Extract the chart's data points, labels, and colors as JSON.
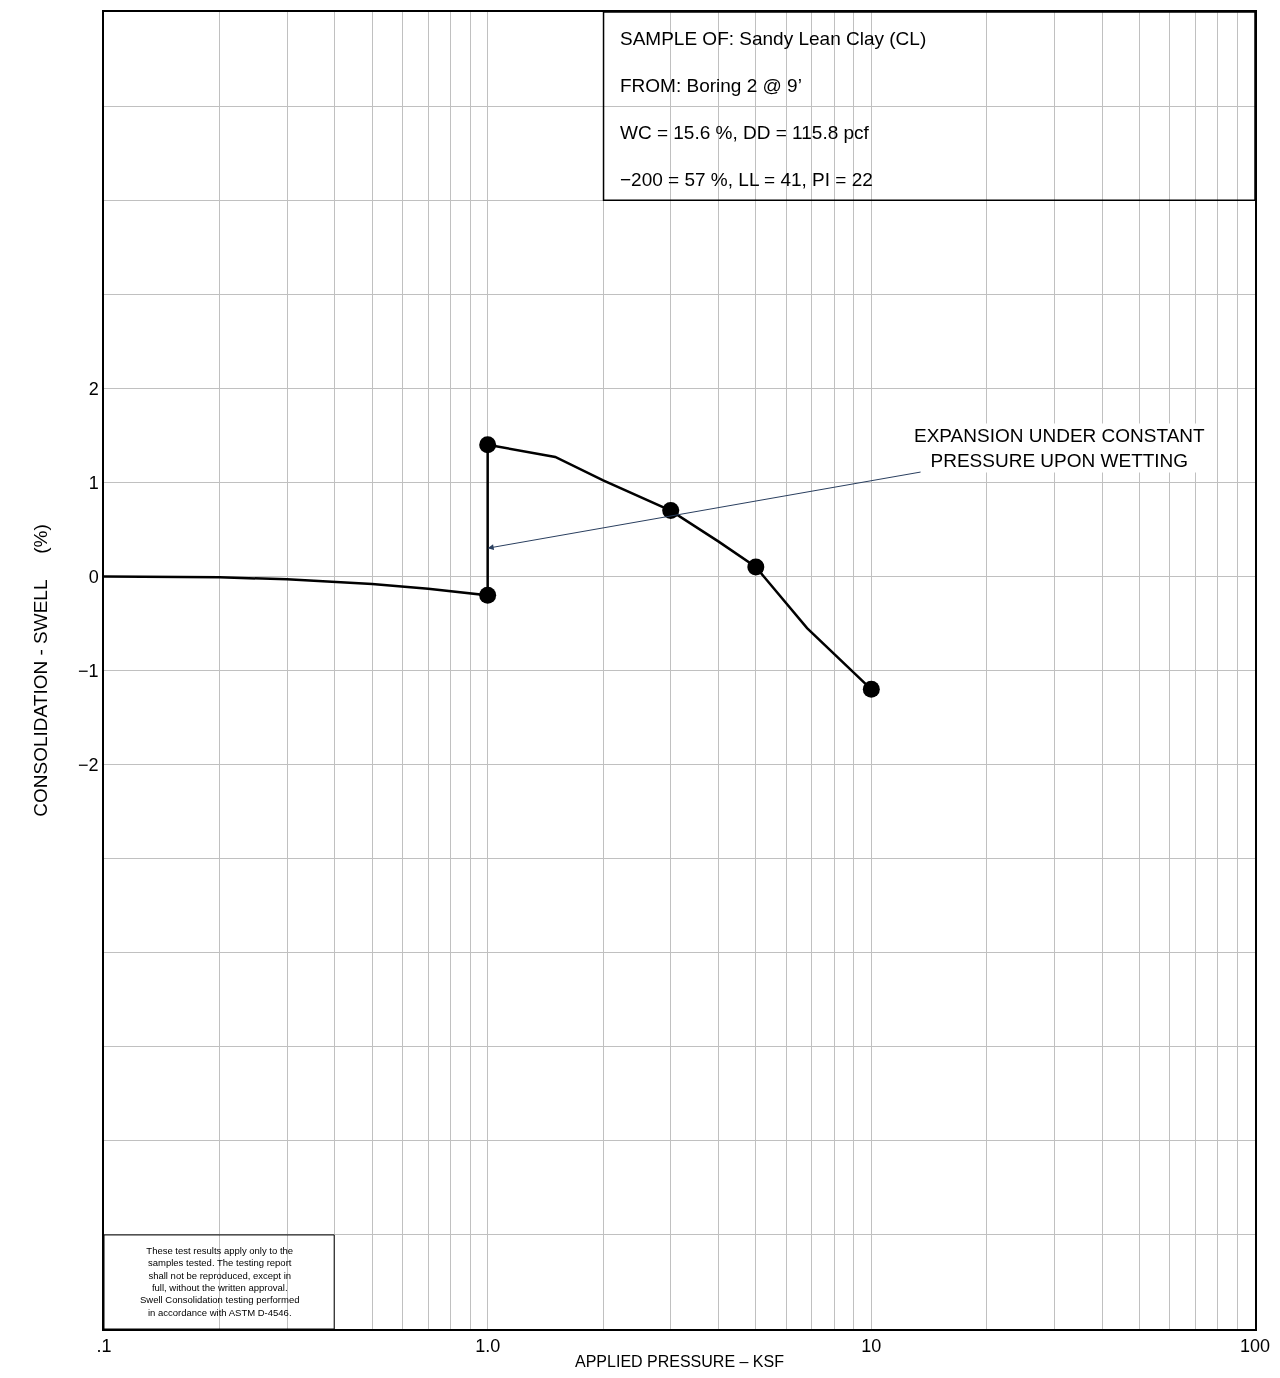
{
  "chart_data": {
    "type": "line",
    "xlabel": "APPLIED PRESSURE – KSF",
    "ylabel": "CONSOLIDATION - SWELL     (%)",
    "annotations": [
      "SAMPLE OF: Sandy Lean Clay (CL)",
      "FROM: Boring 2 @ 9’",
      "WC = 15.6 %, DD = 115.8 pcf",
      "−200 = 57 %, LL = 41, PI = 22",
      "These test results apply only to the samples tested. The testing report shall not be reproduced, except in full, without the written approval. Swell Consolidation testing performed in accordance with ASTM D-4546.",
      {
        "text": "EXPANSION UNDER CONSTANT PRESSURE UPON WETTING",
        "x": 1,
        "y": 0.3
      }
    ],
    "series": [
      {
        "color": "#000000",
        "marker": "none",
        "x": [
          0.1,
          0.2,
          0.3,
          0.5,
          0.7,
          1,
          1,
          1.5,
          2,
          3,
          4,
          5,
          6.8,
          10
        ],
        "values": [
          0,
          -0.01,
          -0.03,
          -0.08,
          -0.13,
          -0.2,
          1.4,
          1.27,
          1.02,
          0.7,
          0.37,
          0.1,
          -0.55,
          -1.2
        ]
      },
      {
        "type": "scatter",
        "color": "#000000",
        "marker": "circle",
        "x": [
          1,
          1,
          3,
          5,
          10
        ],
        "values": [
          -0.2,
          1.4,
          0.7,
          0.1,
          -1.2
        ]
      }
    ],
    "log": "x",
    "xlim": [
      0.1,
      100
    ],
    "xticks": [
      {
        "value": 0.1,
        "label": ".1"
      },
      {
        "value": 0.2,
        "label": null
      },
      {
        "value": 0.3,
        "label": null
      },
      {
        "value": 0.4,
        "label": null
      },
      {
        "value": 0.5,
        "label": null
      },
      {
        "value": 0.6,
        "label": null
      },
      {
        "value": 0.7,
        "label": null
      },
      {
        "value": 0.8,
        "label": null
      },
      {
        "value": 0.9,
        "label": null
      },
      {
        "value": 1,
        "label": "1.0"
      },
      {
        "value": 2,
        "label": null
      },
      {
        "value": 3,
        "label": null
      },
      {
        "value": 4,
        "label": null
      },
      {
        "value": 5,
        "label": null
      },
      {
        "value": 6,
        "label": null
      },
      {
        "value": 7,
        "label": null
      },
      {
        "value": 8,
        "label": null
      },
      {
        "value": 9,
        "label": null
      },
      10,
      {
        "value": 20,
        "label": null
      },
      {
        "value": 30,
        "label": null
      },
      {
        "value": 40,
        "label": null
      },
      {
        "value": 50,
        "label": null
      },
      {
        "value": 60,
        "label": null
      },
      {
        "value": 70,
        "label": null
      },
      {
        "value": 80,
        "label": null
      },
      {
        "value": 90,
        "label": null
      },
      100
    ],
    "ylim": [
      -8,
      6
    ],
    "yticks": [
      {
        "value": -8,
        "label": null
      },
      {
        "value": -7,
        "label": null
      },
      {
        "value": -6,
        "label": null
      },
      {
        "value": -5,
        "label": null
      },
      {
        "value": -4,
        "label": null
      },
      {
        "value": -3,
        "label": null
      },
      {
        "value": -2,
        "label": "−2"
      },
      {
        "value": -1,
        "label": "−1"
      },
      0,
      1,
      2,
      {
        "value": 3,
        "label": null
      },
      {
        "value": 4,
        "label": null
      },
      {
        "value": 5,
        "label": null
      },
      {
        "value": 6,
        "label": null
      }
    ],
    "grid": true,
    "legend": false
  }
}
